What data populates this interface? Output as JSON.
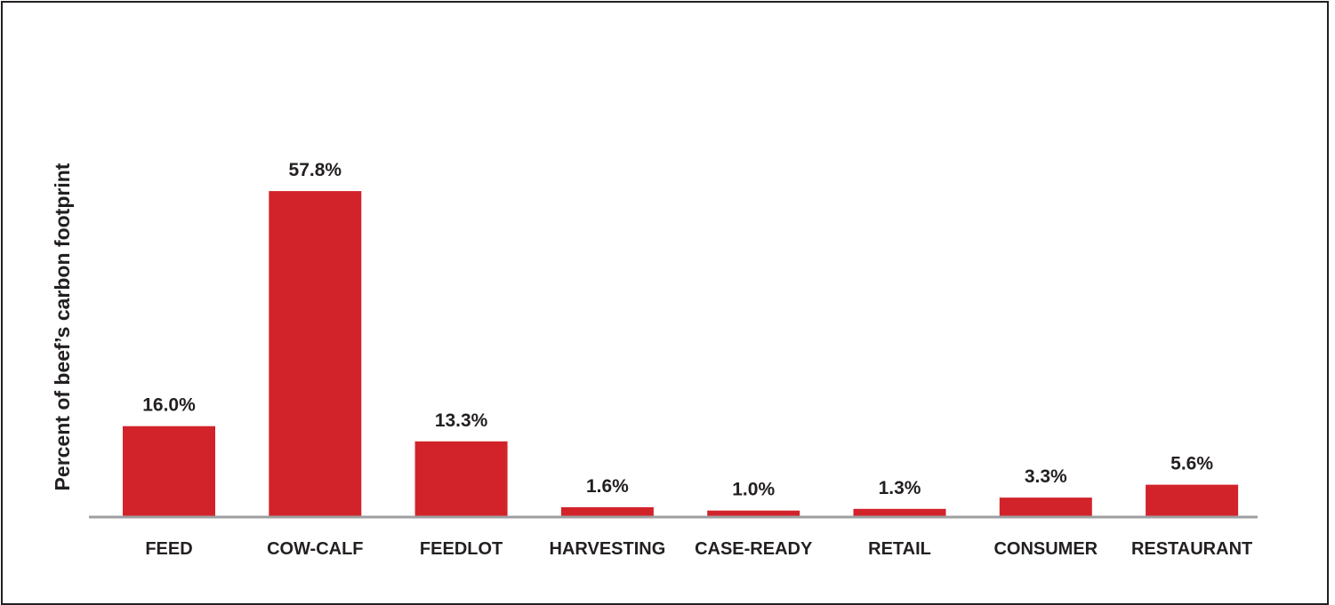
{
  "chart_data": {
    "type": "bar",
    "title": "",
    "xlabel": "",
    "ylabel": "Percent of beef’s carbon footprint",
    "categories": [
      "FEED",
      "COW-CALF",
      "FEEDLOT",
      "HARVESTING",
      "CASE-READY",
      "RETAIL",
      "CONSUMER",
      "RESTAURANT"
    ],
    "values": [
      16.0,
      57.8,
      13.3,
      1.6,
      1.0,
      1.3,
      3.3,
      5.6
    ],
    "data_labels": [
      "16.0%",
      "57.8%",
      "13.3%",
      "1.6%",
      "1.0%",
      "1.3%",
      "3.3%",
      "5.6%"
    ],
    "ylim": [
      0,
      60
    ],
    "grid": false,
    "legend": "none",
    "colors": {
      "bar": "#d2232a",
      "axis": "#9d9fa2",
      "text": "#231f20",
      "border": "#231f20"
    }
  }
}
